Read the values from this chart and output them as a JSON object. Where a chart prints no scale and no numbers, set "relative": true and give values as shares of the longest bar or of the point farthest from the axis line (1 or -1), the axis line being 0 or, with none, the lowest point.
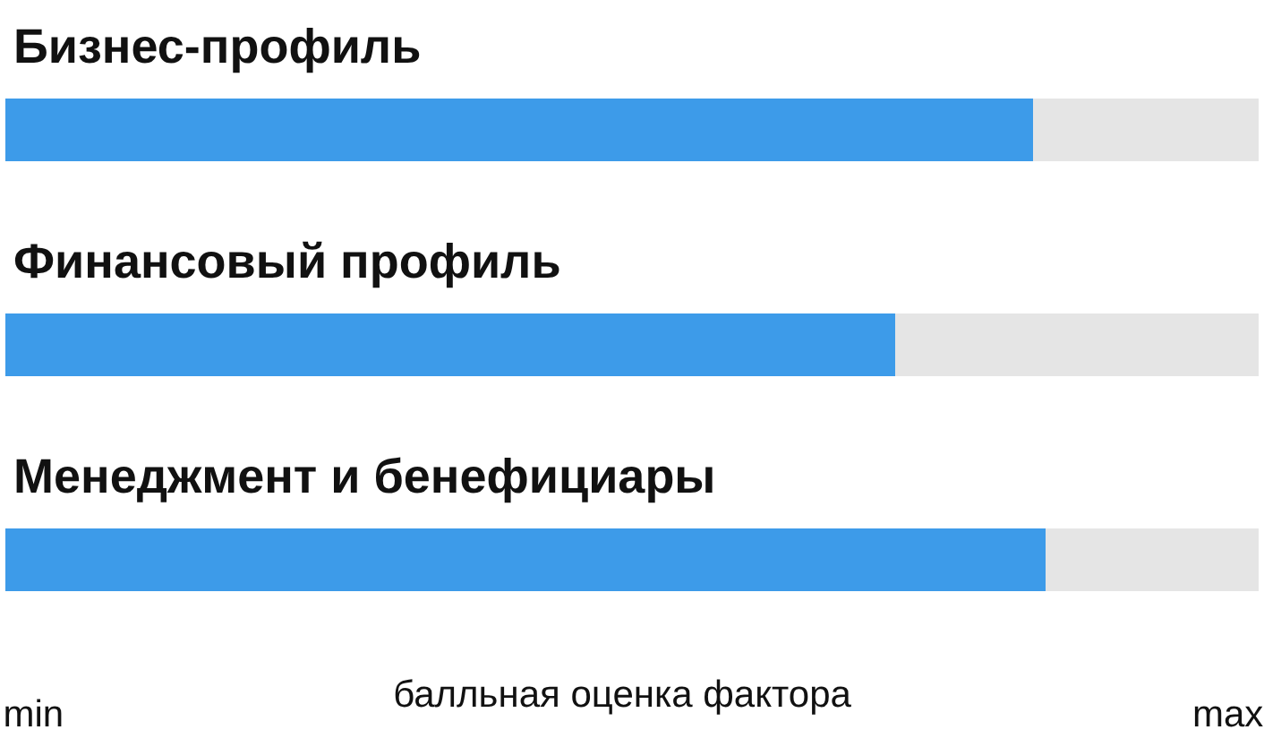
{
  "chart_data": {
    "type": "bar",
    "orientation": "horizontal",
    "stacked": true,
    "relative": true,
    "categories": [
      "Бизнес-профиль",
      "Финансовый профиль",
      "Менеджмент и бенефициары"
    ],
    "series": [
      {
        "color": "#3d9be9",
        "values": [
          0.82,
          0.71,
          0.83
        ]
      },
      {
        "color": "#e5e5e5",
        "values": [
          0.18,
          0.29,
          0.17
        ]
      }
    ],
    "xlabel": "балльная оценка фактора",
    "annotations": [
      "min",
      "max"
    ]
  }
}
